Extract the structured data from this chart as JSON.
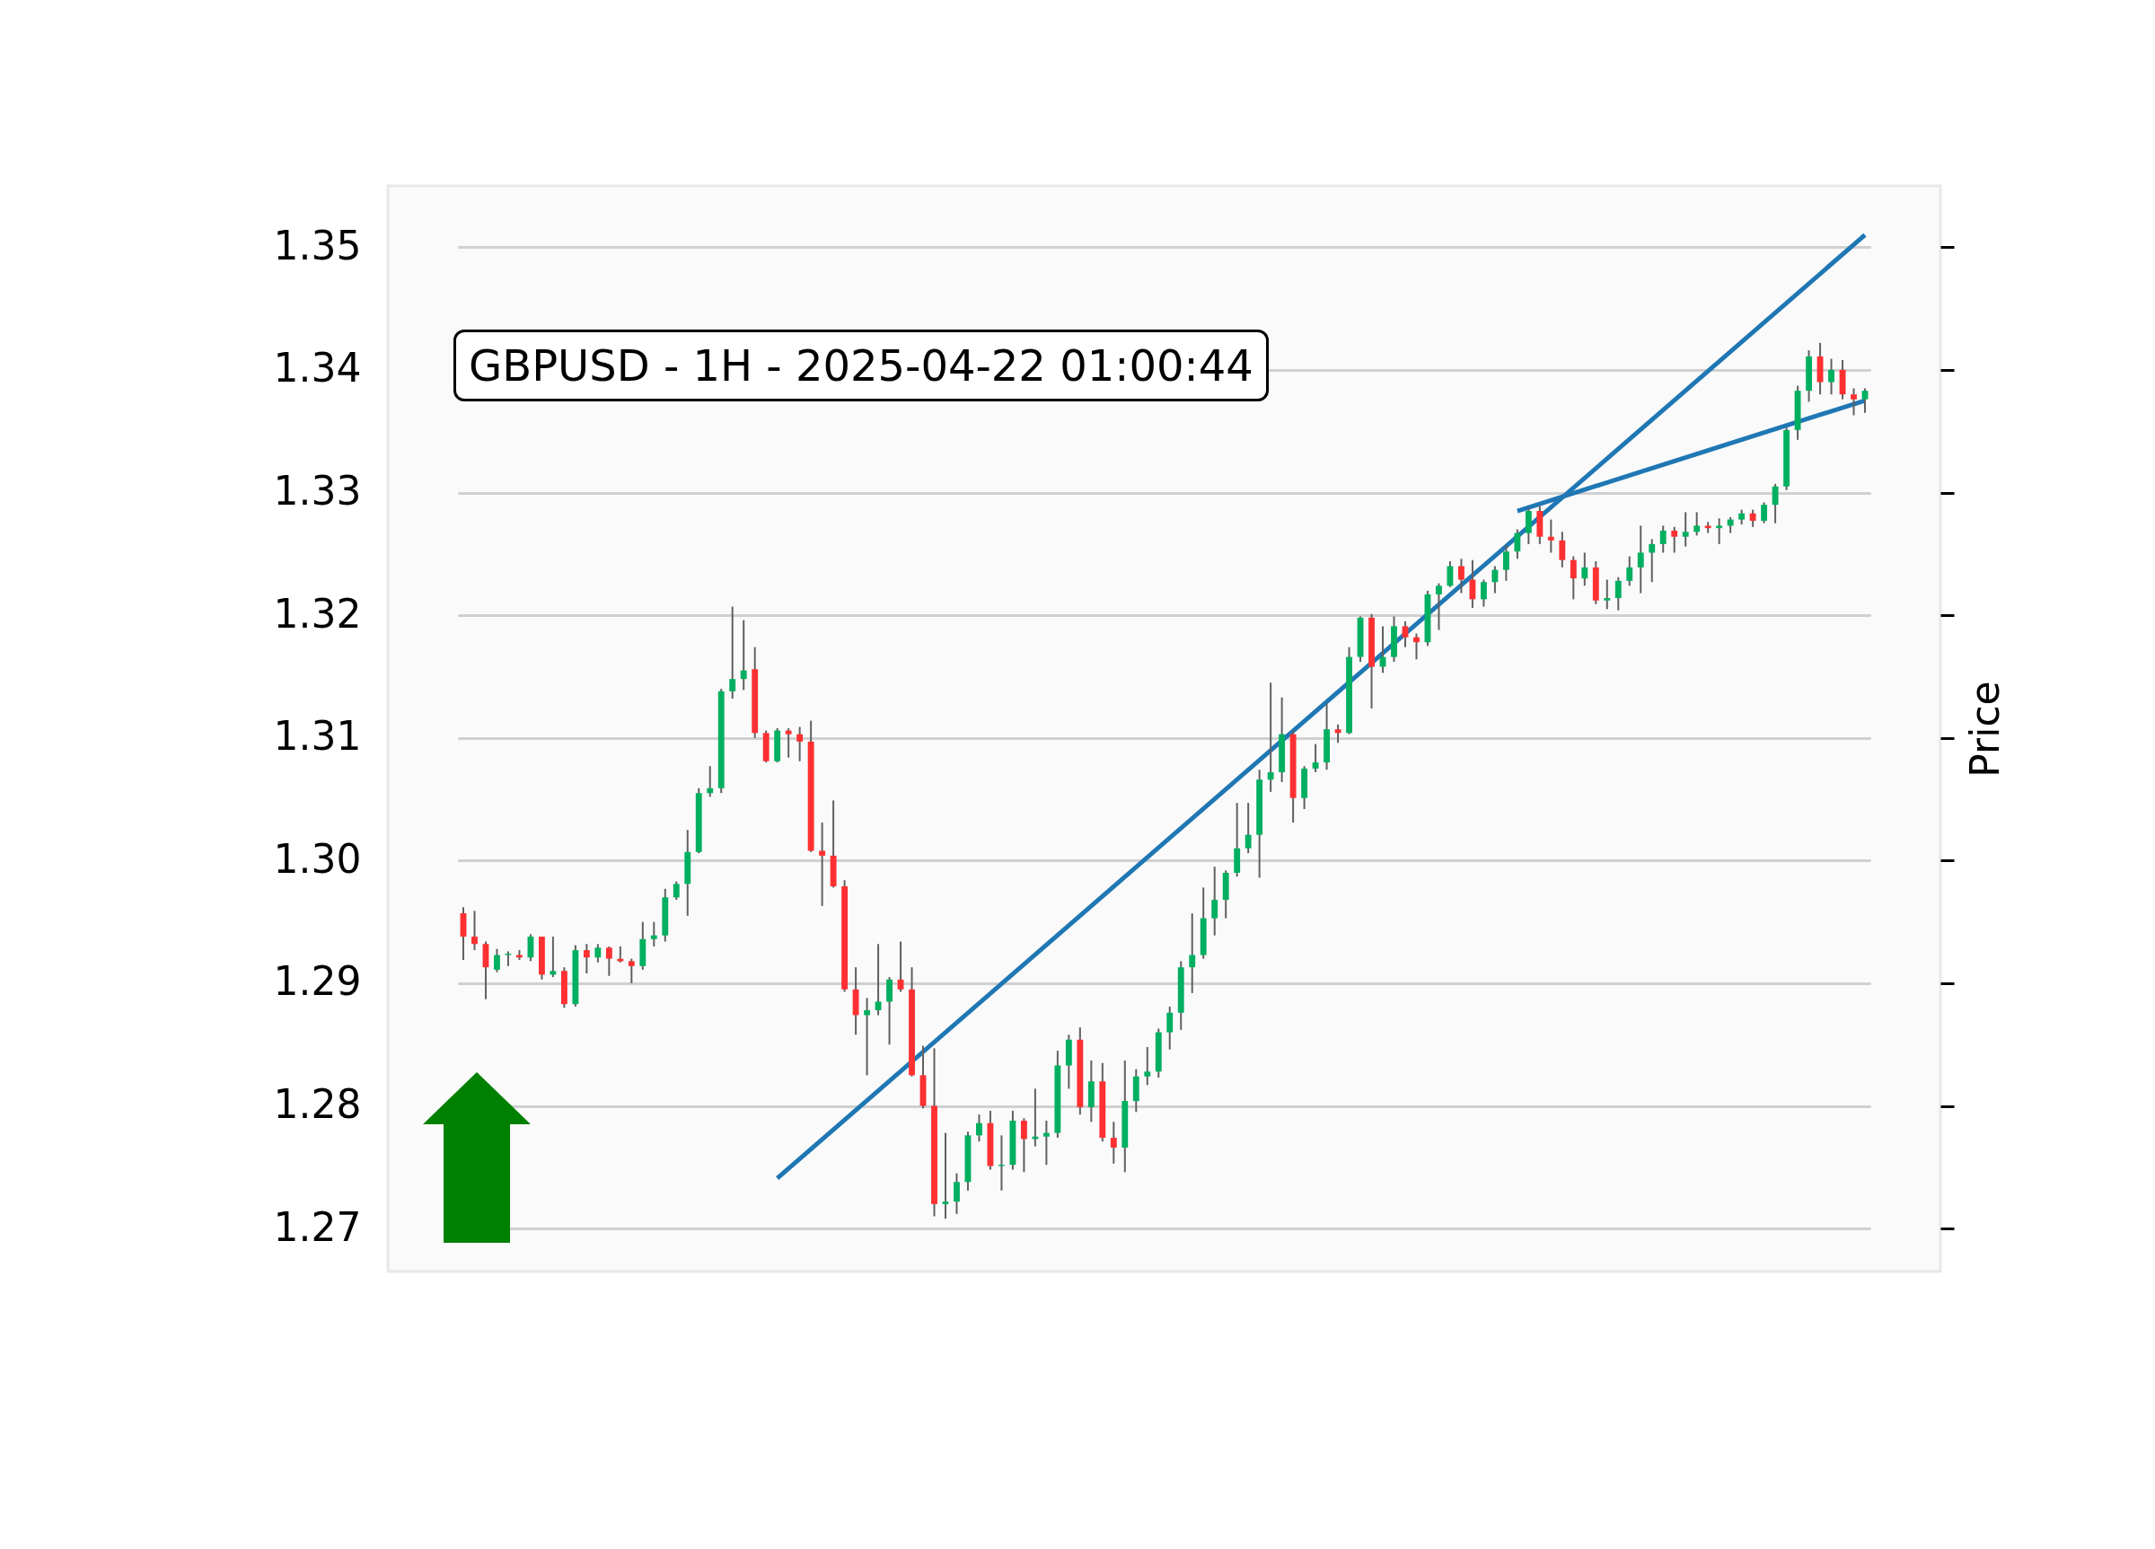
{
  "chart_data": {
    "type": "candlestick",
    "title": "GBPUSD - 1H - 2025-04-22 01:00:44",
    "ylabel": "Price",
    "categories": [
      null,
      null,
      null,
      null,
      null,
      null,
      null,
      null,
      null,
      null,
      null,
      null,
      null,
      null,
      null,
      null,
      null,
      null,
      null,
      null,
      null,
      null,
      null,
      null,
      null,
      null,
      null,
      null,
      null,
      null,
      null,
      null,
      null,
      null,
      null,
      null,
      null,
      null,
      null,
      null,
      null,
      null,
      null,
      null,
      null,
      null,
      null,
      null,
      null,
      null,
      null,
      null,
      null,
      null,
      null,
      null,
      null,
      null,
      null,
      null,
      null,
      null,
      null,
      null,
      null,
      null,
      null,
      null,
      null,
      null,
      null,
      null,
      null,
      null,
      null,
      null,
      null,
      null,
      null,
      null,
      null,
      null,
      null,
      null,
      null,
      null,
      null,
      null,
      null,
      null,
      null,
      null,
      null,
      null,
      null,
      null,
      null,
      null,
      null,
      null,
      null,
      null,
      null,
      null,
      null,
      null,
      null,
      null,
      null,
      null,
      null,
      null,
      null,
      null,
      null,
      null,
      null,
      null,
      null,
      null,
      null,
      null,
      null,
      null,
      null,
      null
    ],
    "ohlc": [
      [
        1.2957,
        1.2962,
        1.2919,
        1.2938
      ],
      [
        1.2938,
        1.2959,
        1.2927,
        1.2932
      ],
      [
        1.2932,
        1.2934,
        1.2887,
        1.2913
      ],
      [
        1.2911,
        1.2928,
        1.2909,
        1.2923
      ],
      [
        1.2923,
        1.2926,
        1.2914,
        1.2924
      ],
      [
        1.2923,
        1.2927,
        1.2919,
        1.2921
      ],
      [
        1.2921,
        1.294,
        1.2918,
        1.2938
      ],
      [
        1.2938,
        1.2938,
        1.2903,
        1.2907
      ],
      [
        1.2907,
        1.2938,
        1.2905,
        1.291
      ],
      [
        1.291,
        1.2913,
        1.288,
        1.2883
      ],
      [
        1.2883,
        1.2931,
        1.2881,
        1.2927
      ],
      [
        1.2927,
        1.2932,
        1.2908,
        1.2921
      ],
      [
        1.2921,
        1.2932,
        1.2917,
        1.2929
      ],
      [
        1.2929,
        1.293,
        1.2906,
        1.292
      ],
      [
        1.292,
        1.293,
        1.2917,
        1.2918
      ],
      [
        1.2918,
        1.292,
        1.29,
        1.2914
      ],
      [
        1.2914,
        1.295,
        1.2911,
        1.2936
      ],
      [
        1.2936,
        1.295,
        1.293,
        1.2939
      ],
      [
        1.2939,
        1.2977,
        1.2934,
        1.297
      ],
      [
        1.297,
        1.2983,
        1.2968,
        1.2981
      ],
      [
        1.2981,
        1.3025,
        1.2955,
        1.3007
      ],
      [
        1.3007,
        1.3059,
        1.3006,
        1.3055
      ],
      [
        1.3055,
        1.3077,
        1.3052,
        1.3059
      ],
      [
        1.3059,
        1.314,
        1.3055,
        1.3138
      ],
      [
        1.3138,
        1.3207,
        1.3132,
        1.3148
      ],
      [
        1.3148,
        1.3196,
        1.3139,
        1.3155
      ],
      [
        1.3156,
        1.3174,
        1.31,
        1.3104
      ],
      [
        1.3104,
        1.3106,
        1.308,
        1.3081
      ],
      [
        1.3081,
        1.3108,
        1.308,
        1.3106
      ],
      [
        1.3106,
        1.3108,
        1.3084,
        1.3103
      ],
      [
        1.3103,
        1.3109,
        1.3081,
        1.3097
      ],
      [
        1.3097,
        1.3114,
        1.3007,
        1.3008
      ],
      [
        1.3008,
        1.3031,
        1.2963,
        1.3004
      ],
      [
        1.3004,
        1.3049,
        1.2978,
        1.2979
      ],
      [
        1.2979,
        1.2984,
        1.2893,
        1.2895
      ],
      [
        1.2895,
        1.2913,
        1.2858,
        1.2874
      ],
      [
        1.2874,
        1.2888,
        1.2825,
        1.2878
      ],
      [
        1.2878,
        1.2932,
        1.2874,
        1.2885
      ],
      [
        1.2885,
        1.2905,
        1.285,
        1.2903
      ],
      [
        1.2903,
        1.2934,
        1.2893,
        1.2895
      ],
      [
        1.2895,
        1.2913,
        1.2824,
        1.2825
      ],
      [
        1.2825,
        1.2849,
        1.2798,
        1.28
      ],
      [
        1.28,
        1.2847,
        1.271,
        1.272
      ],
      [
        1.272,
        1.2778,
        1.2708,
        1.2722
      ],
      [
        1.2722,
        1.2745,
        1.2712,
        1.2738
      ],
      [
        1.2738,
        1.2779,
        1.2731,
        1.2776
      ],
      [
        1.2776,
        1.2793,
        1.2771,
        1.2786
      ],
      [
        1.2786,
        1.2796,
        1.2748,
        1.2751
      ],
      [
        1.2751,
        1.2776,
        1.2731,
        1.2752
      ],
      [
        1.2752,
        1.2796,
        1.2748,
        1.2788
      ],
      [
        1.2788,
        1.279,
        1.2746,
        1.2773
      ],
      [
        1.2773,
        1.2814,
        1.2767,
        1.2775
      ],
      [
        1.2775,
        1.2788,
        1.2752,
        1.2778
      ],
      [
        1.2778,
        1.2845,
        1.2774,
        1.2833
      ],
      [
        1.2833,
        1.2858,
        1.2814,
        1.2854
      ],
      [
        1.2854,
        1.2864,
        1.2793,
        1.2799
      ],
      [
        1.2799,
        1.2837,
        1.2787,
        1.282
      ],
      [
        1.282,
        1.2835,
        1.2771,
        1.2774
      ],
      [
        1.2774,
        1.2787,
        1.2753,
        1.2766
      ],
      [
        1.2766,
        1.2837,
        1.2746,
        1.2804
      ],
      [
        1.2804,
        1.283,
        1.2795,
        1.2824
      ],
      [
        1.2824,
        1.2848,
        1.2817,
        1.2828
      ],
      [
        1.2828,
        1.2863,
        1.2823,
        1.286
      ],
      [
        1.286,
        1.2881,
        1.2846,
        1.2876
      ],
      [
        1.2876,
        1.2918,
        1.2862,
        1.2913
      ],
      [
        1.2913,
        1.2957,
        1.2892,
        1.2923
      ],
      [
        1.2923,
        1.2978,
        1.292,
        1.2953
      ],
      [
        1.2953,
        1.2995,
        1.2939,
        1.2968
      ],
      [
        1.2968,
        1.2992,
        1.2953,
        1.299
      ],
      [
        1.299,
        1.3047,
        1.2987,
        1.301
      ],
      [
        1.301,
        1.3047,
        1.3006,
        1.3021
      ],
      [
        1.3021,
        1.3074,
        1.2986,
        1.3066
      ],
      [
        1.3066,
        1.3145,
        1.3056,
        1.3072
      ],
      [
        1.3072,
        1.3133,
        1.3064,
        1.3103
      ],
      [
        1.3103,
        1.3106,
        1.3031,
        1.3051
      ],
      [
        1.3051,
        1.3077,
        1.3042,
        1.3075
      ],
      [
        1.3075,
        1.3095,
        1.3072,
        1.308
      ],
      [
        1.308,
        1.3128,
        1.3074,
        1.3107
      ],
      [
        1.3107,
        1.3111,
        1.3096,
        1.3104
      ],
      [
        1.3104,
        1.3174,
        1.3103,
        1.3166
      ],
      [
        1.3166,
        1.3199,
        1.3162,
        1.3198
      ],
      [
        1.3198,
        1.3201,
        1.3124,
        1.3158
      ],
      [
        1.3158,
        1.3191,
        1.3153,
        1.3166
      ],
      [
        1.3166,
        1.3199,
        1.3162,
        1.3191
      ],
      [
        1.3191,
        1.3195,
        1.3174,
        1.3182
      ],
      [
        1.3182,
        1.3185,
        1.3164,
        1.3178
      ],
      [
        1.3178,
        1.322,
        1.3175,
        1.3217
      ],
      [
        1.3217,
        1.3226,
        1.3188,
        1.3224
      ],
      [
        1.3224,
        1.3244,
        1.3223,
        1.324
      ],
      [
        1.324,
        1.3246,
        1.3218,
        1.3229
      ],
      [
        1.3229,
        1.3245,
        1.3206,
        1.3213
      ],
      [
        1.3213,
        1.3229,
        1.3207,
        1.3227
      ],
      [
        1.3227,
        1.324,
        1.3218,
        1.3237
      ],
      [
        1.3237,
        1.3257,
        1.3228,
        1.3252
      ],
      [
        1.3252,
        1.327,
        1.3246,
        1.3267
      ],
      [
        1.3267,
        1.3287,
        1.3258,
        1.3285
      ],
      [
        1.3285,
        1.3289,
        1.3258,
        1.3264
      ],
      [
        1.3264,
        1.3278,
        1.3251,
        1.3261
      ],
      [
        1.3261,
        1.3268,
        1.3239,
        1.3245
      ],
      [
        1.3245,
        1.3248,
        1.3213,
        1.323
      ],
      [
        1.323,
        1.3251,
        1.3224,
        1.3239
      ],
      [
        1.3239,
        1.3244,
        1.3209,
        1.3212
      ],
      [
        1.3212,
        1.3229,
        1.3205,
        1.3214
      ],
      [
        1.3214,
        1.3231,
        1.3204,
        1.3228
      ],
      [
        1.3228,
        1.3248,
        1.3224,
        1.3239
      ],
      [
        1.3239,
        1.3273,
        1.3218,
        1.3251
      ],
      [
        1.3251,
        1.3262,
        1.3227,
        1.3258
      ],
      [
        1.3258,
        1.3273,
        1.3251,
        1.3269
      ],
      [
        1.3269,
        1.3272,
        1.3251,
        1.3264
      ],
      [
        1.3264,
        1.3284,
        1.3256,
        1.3268
      ],
      [
        1.3268,
        1.3284,
        1.3265,
        1.3273
      ],
      [
        1.3273,
        1.3276,
        1.3267,
        1.3271
      ],
      [
        1.3271,
        1.3279,
        1.3258,
        1.3273
      ],
      [
        1.3273,
        1.328,
        1.3267,
        1.3278
      ],
      [
        1.3278,
        1.3286,
        1.3274,
        1.3283
      ],
      [
        1.3283,
        1.3286,
        1.3272,
        1.3277
      ],
      [
        1.3277,
        1.3292,
        1.3275,
        1.329
      ],
      [
        1.329,
        1.3307,
        1.3275,
        1.3305
      ],
      [
        1.3305,
        1.3353,
        1.3302,
        1.3351
      ],
      [
        1.3351,
        1.3387,
        1.3343,
        1.3383
      ],
      [
        1.3383,
        1.3416,
        1.3374,
        1.3411
      ],
      [
        1.3411,
        1.3422,
        1.338,
        1.339
      ],
      [
        1.339,
        1.3409,
        1.338,
        1.34
      ],
      [
        1.34,
        1.3408,
        1.3376,
        1.338
      ],
      [
        1.338,
        1.3385,
        1.3363,
        1.3376
      ],
      [
        1.3376,
        1.3385,
        1.3365,
        1.3383
      ]
    ],
    "colors": [
      "#fe3032",
      "#fe3032",
      "#fe3032",
      "#00b060",
      "#00b060",
      "#fe3032",
      "#00b060",
      "#fe3032",
      "#00b060",
      "#fe3032",
      "#00b060",
      "#fe3032",
      "#00b060",
      "#fe3032",
      "#fe3032",
      "#fe3032",
      "#00b060",
      "#00b060",
      "#00b060",
      "#00b060",
      "#00b060",
      "#00b060",
      "#00b060",
      "#00b060",
      "#00b060",
      "#00b060",
      "#fe3032",
      "#fe3032",
      "#00b060",
      "#fe3032",
      "#fe3032",
      "#fe3032",
      "#fe3032",
      "#fe3032",
      "#fe3032",
      "#fe3032",
      "#00b060",
      "#00b060",
      "#00b060",
      "#fe3032",
      "#fe3032",
      "#fe3032",
      "#fe3032",
      "#00b060",
      "#00b060",
      "#00b060",
      "#00b060",
      "#fe3032",
      "#00b060",
      "#00b060",
      "#fe3032",
      "#00b060",
      "#00b060",
      "#00b060",
      "#00b060",
      "#fe3032",
      "#00b060",
      "#fe3032",
      "#fe3032",
      "#00b060",
      "#00b060",
      "#00b060",
      "#00b060",
      "#00b060",
      "#00b060",
      "#00b060",
      "#00b060",
      "#00b060",
      "#00b060",
      "#00b060",
      "#00b060",
      "#00b060",
      "#00b060",
      "#00b060",
      "#fe3032",
      "#00b060",
      "#00b060",
      "#00b060",
      "#fe3032",
      "#00b060",
      "#00b060",
      "#fe3032",
      "#00b060",
      "#00b060",
      "#fe3032",
      "#fe3032",
      "#00b060",
      "#00b060",
      "#00b060",
      "#fe3032",
      "#fe3032",
      "#00b060",
      "#00b060",
      "#00b060",
      "#00b060",
      "#00b060",
      "#fe3032",
      "#fe3032",
      "#fe3032",
      "#fe3032",
      "#00b060",
      "#fe3032",
      "#00b060",
      "#00b060",
      "#00b060",
      "#00b060",
      "#00b060",
      "#00b060",
      "#fe3032",
      "#00b060",
      "#00b060",
      "#fe3032",
      "#00b060",
      "#00b060",
      "#00b060",
      "#fe3032",
      "#00b060",
      "#00b060",
      "#00b060",
      "#00b060",
      "#00b060",
      "#fe3032",
      "#00b060",
      "#fe3032",
      "#fe3032",
      "#00b060"
    ],
    "series": [
      {
        "type": "line",
        "color": "#1f77b4",
        "values": [
          null,
          null,
          null,
          null,
          null,
          null,
          null,
          null,
          null,
          null,
          null,
          null,
          null,
          null,
          null,
          null,
          null,
          null,
          null,
          null,
          null,
          null,
          null,
          null,
          null,
          null,
          null,
          null,
          1.2741,
          null,
          null,
          null,
          null,
          null,
          null,
          null,
          null,
          null,
          null,
          null,
          null,
          null,
          null,
          null,
          null,
          null,
          null,
          null,
          null,
          null,
          null,
          null,
          null,
          null,
          null,
          null,
          null,
          null,
          null,
          null,
          null,
          null,
          null,
          null,
          null,
          null,
          null,
          null,
          null,
          null,
          null,
          null,
          null,
          null,
          null,
          null,
          null,
          null,
          null,
          null,
          null,
          null,
          null,
          null,
          null,
          null,
          null,
          null,
          null,
          null,
          null,
          null,
          null,
          null,
          null,
          null,
          null,
          null,
          null,
          null,
          null,
          null,
          null,
          null,
          null,
          null,
          null,
          null,
          null,
          null,
          null,
          null,
          null,
          null,
          null,
          null,
          null,
          null,
          null,
          null,
          null,
          null,
          null,
          null,
          null,
          1.351
        ]
      },
      {
        "type": "line",
        "color": "#1f77b4",
        "values": [
          null,
          null,
          null,
          null,
          null,
          null,
          null,
          null,
          null,
          null,
          null,
          null,
          null,
          null,
          null,
          null,
          null,
          null,
          null,
          null,
          null,
          null,
          null,
          null,
          null,
          null,
          null,
          null,
          null,
          null,
          null,
          null,
          null,
          null,
          null,
          null,
          null,
          null,
          null,
          null,
          null,
          null,
          null,
          null,
          null,
          null,
          null,
          null,
          null,
          null,
          null,
          null,
          null,
          null,
          null,
          null,
          null,
          null,
          null,
          null,
          null,
          null,
          null,
          null,
          null,
          null,
          null,
          null,
          null,
          null,
          null,
          null,
          null,
          null,
          null,
          null,
          null,
          null,
          null,
          null,
          null,
          null,
          null,
          null,
          null,
          null,
          null,
          null,
          null,
          null,
          null,
          null,
          null,
          null,
          1.3285,
          null,
          null,
          null,
          null,
          null,
          null,
          null,
          null,
          null,
          null,
          null,
          null,
          null,
          null,
          null,
          null,
          null,
          null,
          null,
          null,
          null,
          null,
          null,
          null,
          null,
          null,
          null,
          null,
          null,
          null,
          1.3375
        ]
      }
    ],
    "ylim": [
      1.2665,
      1.355
    ],
    "yticks": [
      {
        "value": 1.27,
        "label": "1.27"
      },
      {
        "value": 1.28,
        "label": "1.28"
      },
      {
        "value": 1.29,
        "label": "1.29"
      },
      {
        "value": 1.3,
        "label": "1.30"
      },
      {
        "value": 1.31,
        "label": "1.31"
      },
      {
        "value": 1.32,
        "label": "1.32"
      },
      {
        "value": 1.33,
        "label": "1.33"
      },
      {
        "value": 1.34,
        "label": "1.34"
      },
      {
        "value": 1.35,
        "label": "1.35"
      }
    ],
    "grid": "y",
    "tick_labels": "y"
  }
}
